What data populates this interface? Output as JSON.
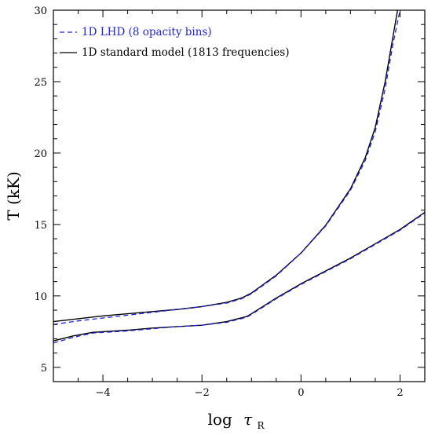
{
  "chart_data": {
    "type": "line",
    "title": "",
    "xlabel": "log",
    "xlabel_symbol": "τ",
    "xlabel_subscript": "R",
    "ylabel": "T  (kK)",
    "xlim": [
      -5.0,
      2.5
    ],
    "ylim": [
      4.0,
      30.0
    ],
    "x_ticks": [
      -4,
      -2,
      0,
      2
    ],
    "x_tick_labels": [
      "−4",
      "−2",
      "0",
      "2"
    ],
    "y_ticks": [
      5,
      10,
      15,
      20,
      25,
      30
    ],
    "y_tick_labels": [
      "5",
      "10",
      "15",
      "20",
      "25",
      "30"
    ],
    "grid": false,
    "legend_position": "top-left",
    "series": [
      {
        "name": "1D LHD (8 opacity bins)",
        "color": "#2222dd",
        "dash": "dashed",
        "branches": [
          [
            [
              -5.0,
              8.0
            ],
            [
              -4.5,
              8.25
            ],
            [
              -4.0,
              8.45
            ],
            [
              -3.5,
              8.65
            ],
            [
              -3.0,
              8.85
            ],
            [
              -2.5,
              9.05
            ],
            [
              -2.0,
              9.25
            ],
            [
              -1.5,
              9.5
            ],
            [
              -1.2,
              9.8
            ],
            [
              -1.0,
              10.15
            ],
            [
              -0.5,
              11.4
            ],
            [
              0.0,
              13.0
            ],
            [
              0.5,
              14.9
            ],
            [
              1.0,
              17.4
            ],
            [
              1.3,
              19.5
            ],
            [
              1.5,
              21.5
            ],
            [
              1.7,
              24.5
            ],
            [
              1.85,
              27.5
            ],
            [
              2.0,
              30.0
            ]
          ],
          [
            [
              -5.0,
              6.7
            ],
            [
              -4.6,
              7.1
            ],
            [
              -4.2,
              7.4
            ],
            [
              -3.5,
              7.55
            ],
            [
              -3.0,
              7.7
            ],
            [
              -2.5,
              7.85
            ],
            [
              -2.0,
              7.95
            ],
            [
              -1.5,
              8.15
            ],
            [
              -1.1,
              8.5
            ],
            [
              -1.0,
              8.7
            ],
            [
              -0.5,
              9.8
            ],
            [
              0.0,
              10.8
            ],
            [
              0.5,
              11.7
            ],
            [
              1.0,
              12.6
            ],
            [
              1.5,
              13.6
            ],
            [
              2.0,
              14.6
            ],
            [
              2.5,
              15.8
            ]
          ]
        ]
      },
      {
        "name": "1D standard model (1813 frequencies)",
        "color": "#000000",
        "dash": "solid",
        "branches": [
          [
            [
              -5.0,
              8.2
            ],
            [
              -4.5,
              8.4
            ],
            [
              -4.0,
              8.6
            ],
            [
              -3.5,
              8.75
            ],
            [
              -3.0,
              8.9
            ],
            [
              -2.5,
              9.05
            ],
            [
              -2.0,
              9.25
            ],
            [
              -1.5,
              9.55
            ],
            [
              -1.2,
              9.85
            ],
            [
              -1.0,
              10.2
            ],
            [
              -0.5,
              11.45
            ],
            [
              0.0,
              13.0
            ],
            [
              0.5,
              14.95
            ],
            [
              1.0,
              17.5
            ],
            [
              1.3,
              19.7
            ],
            [
              1.5,
              21.8
            ],
            [
              1.7,
              25.0
            ],
            [
              1.85,
              28.0
            ],
            [
              1.95,
              30.0
            ]
          ],
          [
            [
              -5.0,
              6.85
            ],
            [
              -4.6,
              7.2
            ],
            [
              -4.2,
              7.45
            ],
            [
              -3.5,
              7.6
            ],
            [
              -3.0,
              7.75
            ],
            [
              -2.5,
              7.85
            ],
            [
              -2.0,
              7.95
            ],
            [
              -1.5,
              8.2
            ],
            [
              -1.1,
              8.55
            ],
            [
              -1.0,
              8.75
            ],
            [
              -0.5,
              9.85
            ],
            [
              0.0,
              10.85
            ],
            [
              0.5,
              11.75
            ],
            [
              1.0,
              12.65
            ],
            [
              1.5,
              13.65
            ],
            [
              2.0,
              14.65
            ],
            [
              2.5,
              15.85
            ]
          ]
        ]
      }
    ]
  }
}
